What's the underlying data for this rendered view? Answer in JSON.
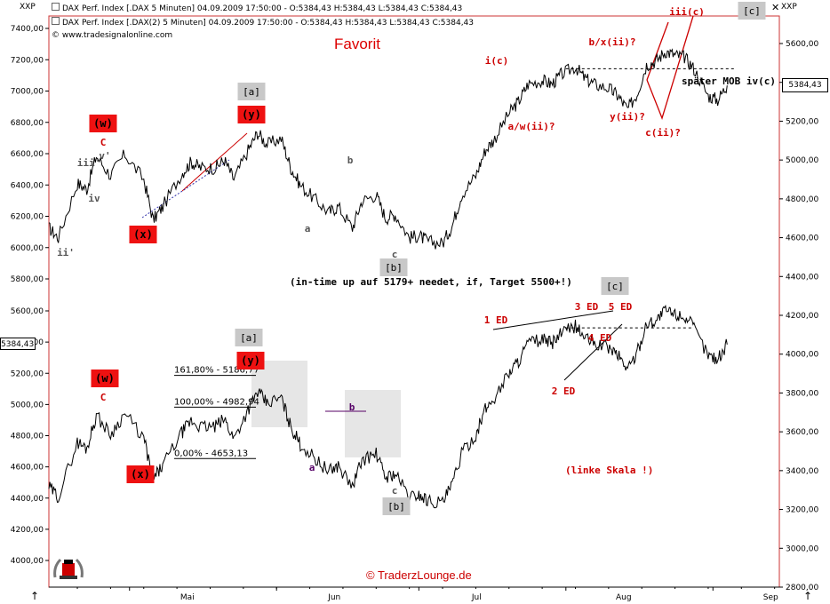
{
  "header": {
    "corner_label": "XXP",
    "line1": "DAX Perf. Index [.DAX  5 Minuten] 04.09.2009 17:50:00 - O:5384,43 H:5384,43 L:5384,43 C:5384,43",
    "line2": "DAX Perf. Index [.DAX(2)  5 Minuten] 04.09.2009 17:50:00 - O:5384,43 H:5384,43 L:5384,43 C:5384,43",
    "copyright": "© www.tradesignalonline.com",
    "right_corner_label": "XXP",
    "last_price_right": "5384,43",
    "last_price_left": "5384,43"
  },
  "chart_data": [
    {
      "type": "line",
      "panel": "upper",
      "title": "Favorit",
      "series": [
        {
          "name": "DAX Perf. Index [.DAX 5 Minuten]"
        }
      ],
      "y_left_ticks": [
        "7400,00",
        "7200,00",
        "7000,00",
        "6800,00",
        "6600,00",
        "6400,00",
        "6200,00",
        "6000,00",
        "5800,00"
      ],
      "y_right_ticks": [
        "5600,00",
        "5400,00",
        "5200,00",
        "5000,00",
        "4800,00",
        "4600,00",
        "4400,00",
        "4200,00",
        "4000,00",
        "3800,00",
        "3600,00",
        "3400,00",
        "3200,00",
        "3000,00",
        "2800,00"
      ],
      "y_right_range": [
        2700,
        5800
      ],
      "x_ticks": [
        "Mai",
        "Jun",
        "Jul",
        "Aug",
        "Sep"
      ],
      "x_range": [
        "2009-04-14",
        "2009-09-15"
      ],
      "price_path": [
        [
          "2009-04-14",
          4650
        ],
        [
          "2009-04-16",
          4600
        ],
        [
          "2009-04-20",
          4880
        ],
        [
          "2009-04-22",
          4850
        ],
        [
          "2009-04-24",
          5020
        ],
        [
          "2009-04-27",
          4920
        ],
        [
          "2009-04-30",
          5030
        ],
        [
          "2009-05-04",
          4900
        ],
        [
          "2009-05-06",
          4690
        ],
        [
          "2009-05-08",
          4760
        ],
        [
          "2009-05-12",
          4930
        ],
        [
          "2009-05-14",
          4990
        ],
        [
          "2009-05-16",
          4960
        ],
        [
          "2009-05-19",
          4960
        ],
        [
          "2009-05-21",
          5000
        ],
        [
          "2009-05-23",
          4900
        ],
        [
          "2009-05-26",
          5050
        ],
        [
          "2009-05-28",
          5140
        ],
        [
          "2009-05-30",
          5080
        ],
        [
          "2009-06-02",
          5110
        ],
        [
          "2009-06-04",
          4960
        ],
        [
          "2009-06-06",
          4870
        ],
        [
          "2009-06-09",
          4800
        ],
        [
          "2009-06-12",
          4730
        ],
        [
          "2009-06-14",
          4760
        ],
        [
          "2009-06-17",
          4650
        ],
        [
          "2009-06-19",
          4790
        ],
        [
          "2009-06-22",
          4820
        ],
        [
          "2009-06-24",
          4700
        ],
        [
          "2009-06-26",
          4720
        ],
        [
          "2009-06-29",
          4600
        ],
        [
          "2009-07-01",
          4610
        ],
        [
          "2009-07-03",
          4580
        ],
        [
          "2009-07-06",
          4570
        ],
        [
          "2009-07-08",
          4660
        ],
        [
          "2009-07-10",
          4820
        ],
        [
          "2009-07-13",
          4920
        ],
        [
          "2009-07-15",
          5050
        ],
        [
          "2009-07-17",
          5110
        ],
        [
          "2009-07-20",
          5240
        ],
        [
          "2009-07-22",
          5300
        ],
        [
          "2009-07-24",
          5390
        ],
        [
          "2009-07-27",
          5410
        ],
        [
          "2009-07-29",
          5390
        ],
        [
          "2009-07-31",
          5440
        ],
        [
          "2009-08-03",
          5480
        ],
        [
          "2009-08-05",
          5420
        ],
        [
          "2009-08-07",
          5390
        ],
        [
          "2009-08-10",
          5370
        ],
        [
          "2009-08-12",
          5330
        ],
        [
          "2009-08-14",
          5260
        ],
        [
          "2009-08-16",
          5340
        ],
        [
          "2009-08-18",
          5490
        ],
        [
          "2009-08-20",
          5510
        ],
        [
          "2009-08-22",
          5560
        ],
        [
          "2009-08-24",
          5540
        ],
        [
          "2009-08-26",
          5530
        ],
        [
          "2009-08-28",
          5470
        ],
        [
          "2009-08-31",
          5330
        ],
        [
          "2009-09-02",
          5310
        ],
        [
          "2009-09-04",
          5384
        ]
      ],
      "levels": [
        {
          "label": "später MOB iv(c)",
          "value": 5470
        }
      ],
      "annotations": [
        "(w)",
        "C",
        "iii'",
        "v'",
        "iv",
        "ii'",
        "(x)",
        "[a]",
        "(y)",
        "b",
        "a",
        "c",
        "[b]",
        "i(c)",
        "b/x(ii)?",
        "iii(c)",
        "[c]",
        "a/w(ii)?",
        "y(ii)?",
        "c(ii)?",
        "später MOB iv(c)"
      ],
      "note": "(in-time up auf 5179+ needet, if, Target 5500+!)"
    },
    {
      "type": "line",
      "panel": "lower",
      "series": [
        {
          "name": "DAX Perf. Index [.DAX(2) 5 Minuten]"
        }
      ],
      "y_left_ticks": [
        "5600,00",
        "5400,00",
        "5200,00",
        "5000,00",
        "4800,00",
        "4600,00",
        "4400,00",
        "4200,00",
        "4000,00"
      ],
      "y_left_range": [
        3900,
        5700
      ],
      "x_ticks": [
        "Mai",
        "Jun",
        "Jul",
        "Aug",
        "Sep"
      ],
      "fib_levels": [
        {
          "label": "161,80% - 5186,77",
          "value": 5186.77
        },
        {
          "label": "100,00% - 4982,94",
          "value": 4982.94
        },
        {
          "label": "0,00% - 4653,13",
          "value": 4653.13
        }
      ],
      "levels": [
        {
          "value": 5470
        }
      ],
      "annotations": [
        "(w)",
        "C",
        "(x)",
        "[a]",
        "(y)",
        "b",
        "a",
        "c",
        "[b]",
        "1 ED",
        "2 ED",
        "3 ED",
        "4 ED",
        "5 ED",
        "[c]"
      ],
      "note": "(linke Skala !)"
    }
  ],
  "footer": {
    "brand": "© TraderzLounge.de"
  },
  "colors": {
    "price": "#000000",
    "annotation_red": "#cc0000",
    "label_box": "#ee1111",
    "gray_box": "#c8c8c8",
    "axis_red": "#cc3333",
    "box_fill": "#e6e6e6"
  }
}
